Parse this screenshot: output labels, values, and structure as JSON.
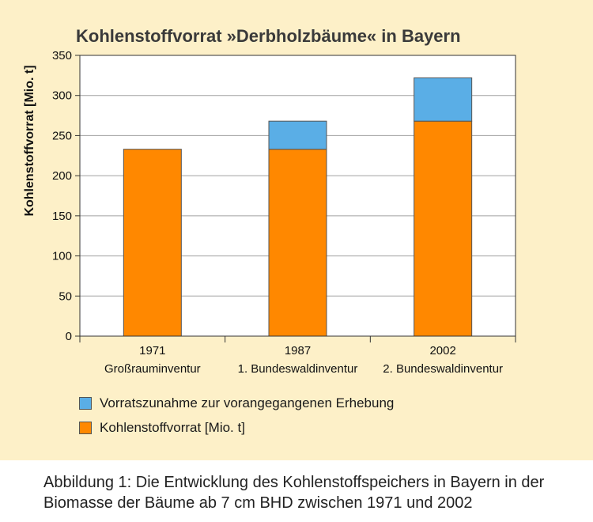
{
  "caption": "Abbildung 1: Die Entwicklung des Kohlenstoffspeichers in Bayern in der Biomasse der Bäume ab 7 cm BHD zwischen 1971 und 2002",
  "colors": {
    "stock": "#ff8800",
    "increase": "#5aaee6",
    "background": "#fdf0c8",
    "plot_background": "#ffffff",
    "grid": "#a0a0a0"
  },
  "chart_data": {
    "type": "bar",
    "stacked": true,
    "title": "Kohlenstoffvorrat »Derbholzbäume« in Bayern",
    "ylabel": "Kohlenstoffvorrat [Mio. t]",
    "xlabel": "",
    "ylim": [
      0,
      350
    ],
    "yticks": [
      0,
      50,
      100,
      150,
      200,
      250,
      300,
      350
    ],
    "grid": true,
    "legend_position": "bottom-left",
    "categories": [
      {
        "year": "1971",
        "label": "Großrauminventur"
      },
      {
        "year": "1987",
        "label": "1. Bundeswaldinventur"
      },
      {
        "year": "2002",
        "label": "2. Bundeswaldinventur"
      }
    ],
    "series": [
      {
        "name": "Kohlenstoffvorrat [Mio. t]",
        "color": "#ff8800",
        "values": [
          233,
          233,
          268
        ]
      },
      {
        "name": "Vorratszunahme zur vorangegangenen Erhebung",
        "color": "#5aaee6",
        "values": [
          0,
          35,
          54
        ]
      }
    ],
    "legend_order": [
      1,
      0
    ]
  }
}
